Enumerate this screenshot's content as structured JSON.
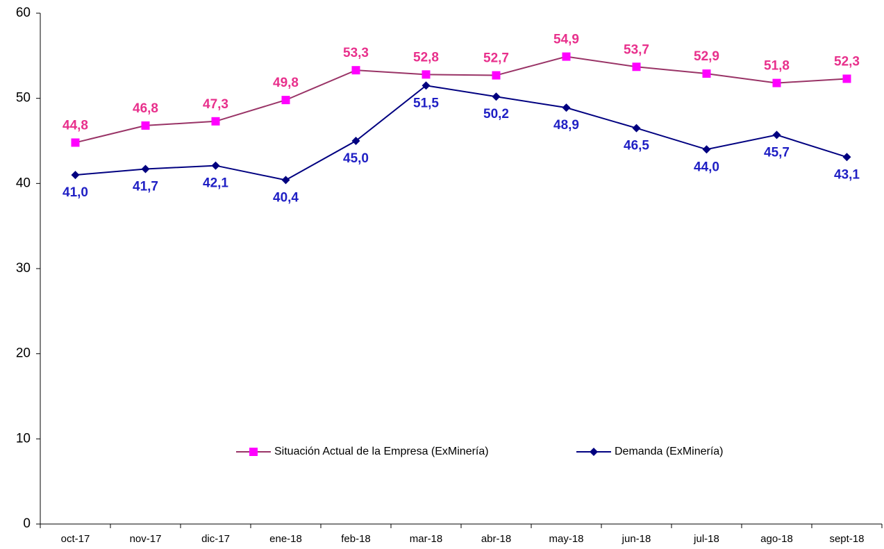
{
  "chart_data": {
    "type": "line",
    "categories": [
      "oct-17",
      "nov-17",
      "dic-17",
      "ene-18",
      "feb-18",
      "mar-18",
      "abr-18",
      "may-18",
      "jun-18",
      "jul-18",
      "ago-18",
      "sept-18"
    ],
    "series": [
      {
        "name": "Situación Actual de la Empresa (ExMinería)",
        "color": "#993366",
        "marker_color": "#ff00ff",
        "marker": "square",
        "label_color": "#e8308c",
        "label_position": "above",
        "values": [
          44.8,
          46.8,
          47.3,
          49.8,
          53.3,
          52.8,
          52.7,
          54.9,
          53.7,
          52.9,
          51.8,
          52.3
        ],
        "value_labels": [
          "44,8",
          "46,8",
          "47,3",
          "49,8",
          "53,3",
          "52,8",
          "52,7",
          "54,9",
          "53,7",
          "52,9",
          "51,8",
          "52,3"
        ]
      },
      {
        "name": "Demanda (ExMinería)",
        "color": "#000080",
        "marker_color": "#000080",
        "marker": "diamond",
        "label_color": "#1f1fc4",
        "label_position": "below",
        "values": [
          41.0,
          41.7,
          42.1,
          40.4,
          45.0,
          51.5,
          50.2,
          48.9,
          46.5,
          44.0,
          45.7,
          43.1
        ],
        "value_labels": [
          "41,0",
          "41,7",
          "42,1",
          "40,4",
          "45,0",
          "51,5",
          "50,2",
          "48,9",
          "46,5",
          "44,0",
          "45,7",
          "43,1"
        ]
      }
    ],
    "ylim": [
      0,
      60
    ],
    "yticks": [
      0,
      10,
      20,
      30,
      40,
      50,
      60
    ],
    "grid": false,
    "legend": "center"
  }
}
